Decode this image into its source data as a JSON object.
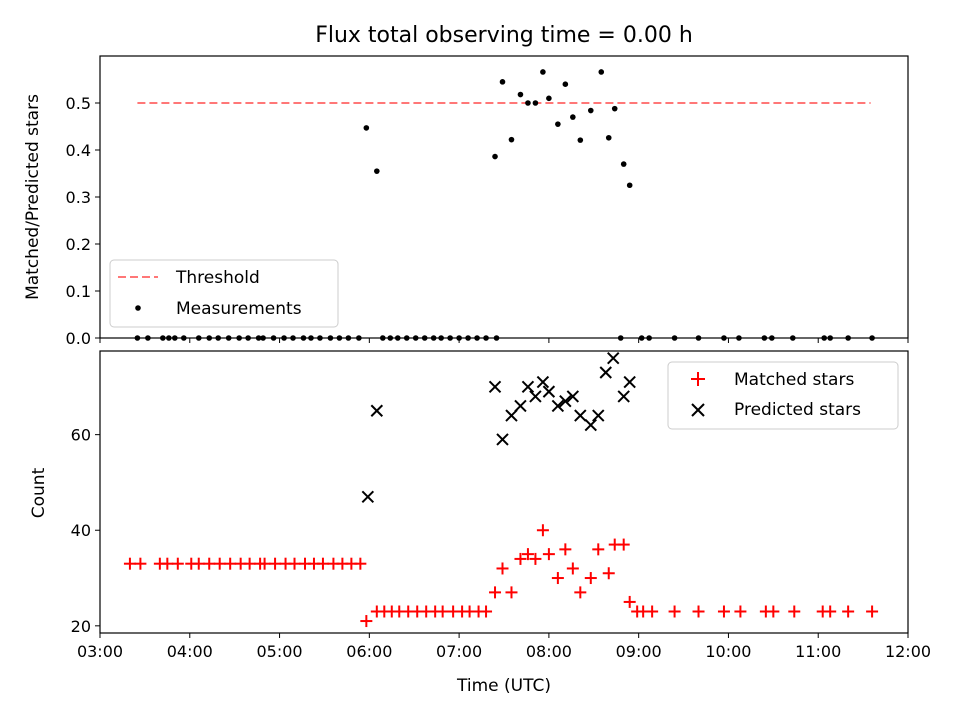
{
  "chart_data": {
    "title": "Flux total observing time = 0.00 h",
    "xlabel": "Time (UTC)",
    "xlim": [
      "03:00",
      "12:00"
    ],
    "xticks": [
      "03:00",
      "04:00",
      "05:00",
      "06:00",
      "07:00",
      "08:00",
      "09:00",
      "10:00",
      "11:00",
      "12:00"
    ],
    "top": {
      "type": "scatter",
      "ylabel": "Matched/Predicted stars",
      "ylim": [
        0,
        0.6
      ],
      "yticks": [
        "0.0",
        "0.1",
        "0.2",
        "0.3",
        "0.4",
        "0.5"
      ],
      "legend_position": "lower-left",
      "threshold": {
        "name": "Threshold",
        "value": 0.5,
        "x_range": [
          "03:25",
          "11:35"
        ],
        "color": "#ff7777"
      },
      "measurements": {
        "name": "Measurements",
        "color": "#000000",
        "points": [
          [
            "03:25",
            0
          ],
          [
            "03:32",
            0
          ],
          [
            "03:42",
            0
          ],
          [
            "03:46",
            0
          ],
          [
            "03:50",
            0
          ],
          [
            "03:56",
            0
          ],
          [
            "04:06",
            0
          ],
          [
            "04:13",
            0
          ],
          [
            "04:19",
            0
          ],
          [
            "04:26",
            0
          ],
          [
            "04:33",
            0
          ],
          [
            "04:39",
            0
          ],
          [
            "04:46",
            0
          ],
          [
            "04:49",
            0
          ],
          [
            "04:56",
            0
          ],
          [
            "05:03",
            0
          ],
          [
            "05:09",
            0
          ],
          [
            "05:16",
            0
          ],
          [
            "05:21",
            0
          ],
          [
            "05:27",
            0
          ],
          [
            "05:34",
            0
          ],
          [
            "05:40",
            0
          ],
          [
            "05:46",
            0
          ],
          [
            "05:53",
            0
          ],
          [
            "05:58",
            0.447
          ],
          [
            "06:05",
            0.355
          ],
          [
            "06:09",
            0
          ],
          [
            "06:14",
            0
          ],
          [
            "06:19",
            0
          ],
          [
            "06:25",
            0
          ],
          [
            "06:31",
            0
          ],
          [
            "06:37",
            0
          ],
          [
            "06:43",
            0
          ],
          [
            "06:48",
            0
          ],
          [
            "06:54",
            0
          ],
          [
            "07:00",
            0
          ],
          [
            "07:06",
            0
          ],
          [
            "07:12",
            0
          ],
          [
            "07:18",
            0
          ],
          [
            "07:25",
            0
          ],
          [
            "07:24",
            0.386
          ],
          [
            "07:29",
            0.545
          ],
          [
            "07:35",
            0.422
          ],
          [
            "07:41",
            0.518
          ],
          [
            "07:46",
            0.5
          ],
          [
            "07:51",
            0.5
          ],
          [
            "07:56",
            0.566
          ],
          [
            "08:00",
            0.51
          ],
          [
            "08:06",
            0.455
          ],
          [
            "08:11",
            0.54
          ],
          [
            "08:16",
            0.47
          ],
          [
            "08:21",
            0.421
          ],
          [
            "08:28",
            0.484
          ],
          [
            "08:35",
            0.566
          ],
          [
            "08:40",
            0.426
          ],
          [
            "08:44",
            0.488
          ],
          [
            "08:50",
            0.37
          ],
          [
            "08:54",
            0.325
          ],
          [
            "08:48",
            0
          ],
          [
            "09:02",
            0
          ],
          [
            "09:07",
            0
          ],
          [
            "09:24",
            0
          ],
          [
            "09:40",
            0
          ],
          [
            "09:57",
            0
          ],
          [
            "10:07",
            0
          ],
          [
            "10:24",
            0
          ],
          [
            "10:29",
            0
          ],
          [
            "10:43",
            0
          ],
          [
            "11:04",
            0
          ],
          [
            "11:08",
            0
          ],
          [
            "11:20",
            0
          ],
          [
            "11:36",
            0
          ]
        ]
      }
    },
    "bottom": {
      "type": "scatter",
      "ylabel": "Count",
      "ylim": [
        18.5,
        77.5
      ],
      "yticks": [
        "20",
        "40",
        "60"
      ],
      "legend_position": "upper-right",
      "matched": {
        "name": "Matched stars",
        "color": "#ff0000",
        "points": [
          [
            "03:20",
            33
          ],
          [
            "03:27",
            33
          ],
          [
            "03:40",
            33
          ],
          [
            "03:45",
            33
          ],
          [
            "03:52",
            33
          ],
          [
            "04:01",
            33
          ],
          [
            "04:06",
            33
          ],
          [
            "04:13",
            33
          ],
          [
            "04:20",
            33
          ],
          [
            "04:27",
            33
          ],
          [
            "04:34",
            33
          ],
          [
            "04:40",
            33
          ],
          [
            "04:47",
            33
          ],
          [
            "04:50",
            33
          ],
          [
            "04:57",
            33
          ],
          [
            "05:04",
            33
          ],
          [
            "05:10",
            33
          ],
          [
            "05:17",
            33
          ],
          [
            "05:23",
            33
          ],
          [
            "05:29",
            33
          ],
          [
            "05:36",
            33
          ],
          [
            "05:42",
            33
          ],
          [
            "05:48",
            33
          ],
          [
            "05:54",
            33
          ],
          [
            "05:58",
            21
          ],
          [
            "06:05",
            23
          ],
          [
            "06:10",
            23
          ],
          [
            "06:15",
            23
          ],
          [
            "06:20",
            23
          ],
          [
            "06:26",
            23
          ],
          [
            "06:32",
            23
          ],
          [
            "06:38",
            23
          ],
          [
            "06:44",
            23
          ],
          [
            "06:49",
            23
          ],
          [
            "06:56",
            23
          ],
          [
            "07:02",
            23
          ],
          [
            "07:07",
            23
          ],
          [
            "07:13",
            23
          ],
          [
            "07:18",
            23
          ],
          [
            "07:24",
            27
          ],
          [
            "07:29",
            32
          ],
          [
            "07:35",
            27
          ],
          [
            "07:41",
            34
          ],
          [
            "07:46",
            35
          ],
          [
            "07:51",
            34
          ],
          [
            "07:56",
            40
          ],
          [
            "08:00",
            35
          ],
          [
            "08:06",
            30
          ],
          [
            "08:11",
            36
          ],
          [
            "08:16",
            32
          ],
          [
            "08:21",
            27
          ],
          [
            "08:28",
            30
          ],
          [
            "08:33",
            36
          ],
          [
            "08:40",
            31
          ],
          [
            "08:44",
            37
          ],
          [
            "08:50",
            37
          ],
          [
            "08:54",
            25
          ],
          [
            "08:59",
            23
          ],
          [
            "09:03",
            23
          ],
          [
            "09:09",
            23
          ],
          [
            "09:24",
            23
          ],
          [
            "09:40",
            23
          ],
          [
            "09:57",
            23
          ],
          [
            "10:08",
            23
          ],
          [
            "10:25",
            23
          ],
          [
            "10:30",
            23
          ],
          [
            "10:44",
            23
          ],
          [
            "11:03",
            23
          ],
          [
            "11:08",
            23
          ],
          [
            "11:20",
            23
          ],
          [
            "11:36",
            23
          ]
        ]
      },
      "predicted": {
        "name": "Predicted stars",
        "color": "#000000",
        "points": [
          [
            "05:59",
            47
          ],
          [
            "06:05",
            65
          ],
          [
            "07:24",
            70
          ],
          [
            "07:29",
            59
          ],
          [
            "07:35",
            64
          ],
          [
            "07:41",
            66
          ],
          [
            "07:46",
            70
          ],
          [
            "07:51",
            68
          ],
          [
            "07:56",
            71
          ],
          [
            "08:00",
            69
          ],
          [
            "08:06",
            66
          ],
          [
            "08:11",
            67
          ],
          [
            "08:16",
            68
          ],
          [
            "08:21",
            64
          ],
          [
            "08:28",
            62
          ],
          [
            "08:33",
            64
          ],
          [
            "08:38",
            73
          ],
          [
            "08:43",
            76
          ],
          [
            "08:50",
            68
          ],
          [
            "08:54",
            71
          ]
        ]
      }
    }
  }
}
